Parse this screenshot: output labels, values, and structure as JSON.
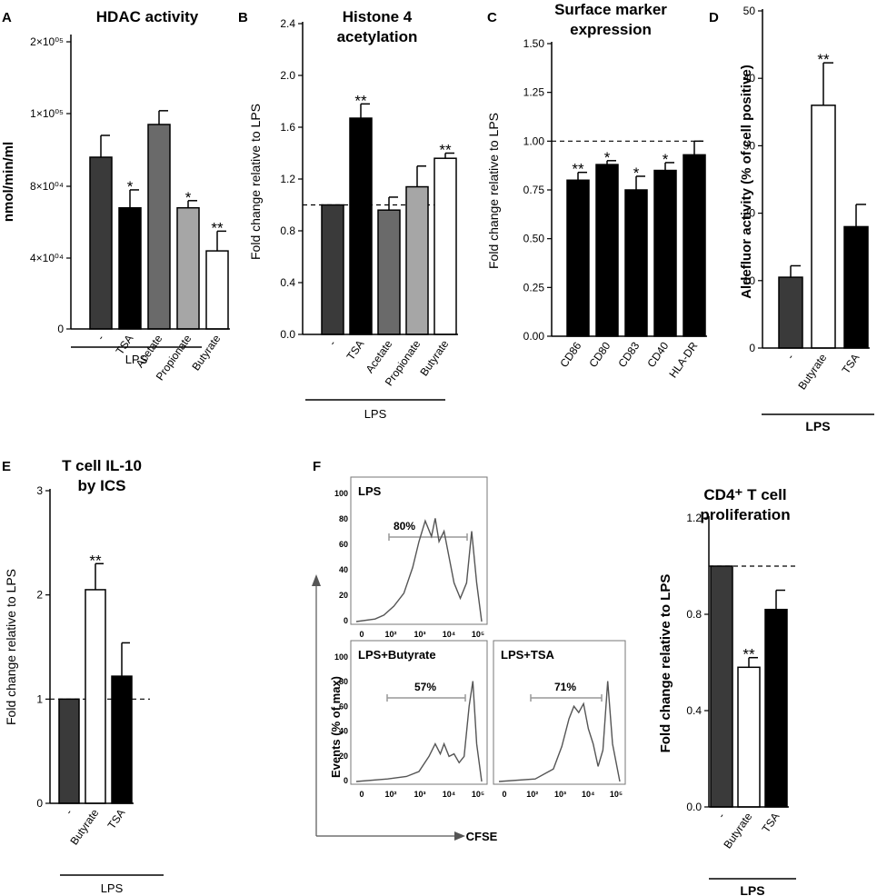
{
  "chart_data": [
    {
      "panel": "A",
      "type": "bar",
      "title": "HDAC activity",
      "ylabel": "nmol/min/ml",
      "categories": [
        "-",
        "TSA",
        "Acetate",
        "Propionate",
        "Butyrate"
      ],
      "values": [
        88000,
        68000,
        97000,
        68000,
        44000
      ],
      "errors": [
        6000,
        10000,
        7000,
        4000,
        11000
      ],
      "significance": [
        "",
        "*",
        "",
        "*",
        "**"
      ],
      "colors": [
        "#3a3a3a",
        "#000000",
        "#6a6a6a",
        "#a6a6a6",
        "#ffffff"
      ],
      "ylim": [
        0,
        200000
      ],
      "yticks": [
        0,
        40000,
        80000,
        100000,
        200000
      ],
      "ytick_labels": [
        "0",
        "4×10⁰⁴",
        "8×10⁰⁴",
        "1×10⁰⁵",
        "2×10⁰⁵"
      ],
      "group_label": "LPS"
    },
    {
      "panel": "B",
      "type": "bar",
      "title_lines": [
        "Histone 4",
        "acetylation"
      ],
      "ylabel": "Fold change relative to LPS",
      "categories": [
        "-",
        "TSA",
        "Acetate",
        "Propionate",
        "Butyrate"
      ],
      "values": [
        1.0,
        1.67,
        0.96,
        1.14,
        1.36
      ],
      "errors": [
        0,
        0.11,
        0.1,
        0.16,
        0.04
      ],
      "significance": [
        "",
        "**",
        "",
        "",
        "**"
      ],
      "colors": [
        "#3a3a3a",
        "#000000",
        "#6a6a6a",
        "#a6a6a6",
        "#ffffff"
      ],
      "ylim": [
        0,
        2.4
      ],
      "yticks": [
        0,
        0.4,
        0.8,
        1.2,
        1.6,
        2.0,
        2.4
      ],
      "ytick_labels": [
        "0.0",
        "0.4",
        "0.8",
        "1.2",
        "1.6",
        "2.0",
        "2.4"
      ],
      "reference_line": 1.0,
      "group_label": "LPS"
    },
    {
      "panel": "C",
      "type": "bar",
      "title_lines": [
        "Surface marker",
        "expression"
      ],
      "ylabel": "Fold change relative to LPS",
      "categories": [
        "CD86",
        "CD80",
        "CD83",
        "CD40",
        "HLA-DR"
      ],
      "values": [
        0.8,
        0.88,
        0.75,
        0.85,
        0.93
      ],
      "errors": [
        0.04,
        0.02,
        0.07,
        0.04,
        0.07
      ],
      "significance": [
        "**",
        "*",
        "*",
        "*",
        ""
      ],
      "colors": [
        "#000000",
        "#000000",
        "#000000",
        "#000000",
        "#000000"
      ],
      "ylim": [
        0,
        1.5
      ],
      "yticks": [
        0,
        0.25,
        0.5,
        0.75,
        1.0,
        1.25,
        1.5
      ],
      "ytick_labels": [
        "0.00",
        "0.25",
        "0.50",
        "0.75",
        "1.00",
        "1.25",
        "1.50"
      ],
      "reference_line": 1.0
    },
    {
      "panel": "D",
      "type": "bar",
      "title": "",
      "ylabel": "Aldefluor activity (% of cell positive)",
      "categories": [
        "-",
        "Butyrate",
        "TSA"
      ],
      "values": [
        10.5,
        36,
        18
      ],
      "errors": [
        1.7,
        6.3,
        3.3
      ],
      "significance": [
        "",
        "**",
        ""
      ],
      "colors": [
        "#3a3a3a",
        "#ffffff",
        "#000000"
      ],
      "ylim": [
        0,
        50
      ],
      "yticks": [
        0,
        10,
        20,
        30,
        40,
        50
      ],
      "ytick_labels": [
        "0",
        "10",
        "20",
        "30",
        "40",
        "50"
      ],
      "group_label": "LPS"
    },
    {
      "panel": "E",
      "type": "bar",
      "title_lines": [
        "T cell IL-10",
        "by ICS"
      ],
      "ylabel": "Fold change relative to LPS",
      "categories": [
        "-",
        "Butyrate",
        "TSA"
      ],
      "values": [
        1.0,
        2.05,
        1.22
      ],
      "errors": [
        0,
        0.25,
        0.32
      ],
      "significance": [
        "",
        "**",
        ""
      ],
      "colors": [
        "#3a3a3a",
        "#ffffff",
        "#000000"
      ],
      "ylim": [
        0,
        3
      ],
      "yticks": [
        0,
        1,
        2,
        3
      ],
      "ytick_labels": [
        "0",
        "1",
        "2",
        "3"
      ],
      "reference_line": 1.0,
      "group_label": "LPS"
    },
    {
      "panel": "F",
      "type": "bar",
      "title_lines": [
        "CD4⁺ T cell",
        "proliferation"
      ],
      "ylabel": "Fold change relative to LPS",
      "categories": [
        "-",
        "Butyrate",
        "TSA"
      ],
      "values": [
        1.0,
        0.58,
        0.82
      ],
      "errors": [
        0,
        0.04,
        0.08
      ],
      "significance": [
        "",
        "**",
        ""
      ],
      "colors": [
        "#3a3a3a",
        "#ffffff",
        "#000000"
      ],
      "ylim": [
        0,
        1.2
      ],
      "yticks": [
        0,
        0.4,
        0.8,
        1.2
      ],
      "ytick_labels": [
        "0.0",
        "0.4",
        "0.8",
        "1.2"
      ],
      "reference_line": 1.0,
      "group_label": "LPS"
    }
  ],
  "histograms": {
    "panel": "F",
    "ylabel": "Events (% of max)",
    "xlabel": "CFSE",
    "yticks": [
      "0",
      "20",
      "40",
      "60",
      "80",
      "100"
    ],
    "xticks": [
      "0",
      "10²",
      "10³",
      "10⁴",
      "10⁵"
    ],
    "plots": [
      {
        "label": "LPS",
        "percent": "80%"
      },
      {
        "label": "LPS+Butyrate",
        "percent": "57%"
      },
      {
        "label": "LPS+TSA",
        "percent": "71%"
      }
    ]
  }
}
